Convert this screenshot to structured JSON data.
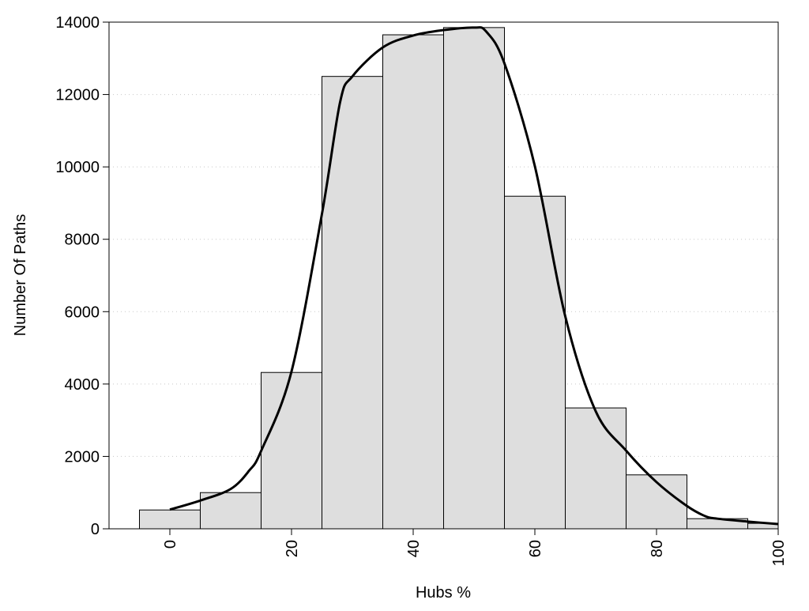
{
  "chart_data": {
    "type": "bar",
    "title": "",
    "xlabel": "Hubs %",
    "ylabel": "Number Of Paths",
    "xlim": [
      -10,
      100
    ],
    "ylim": [
      0,
      14000
    ],
    "grid": "horizontal-dotted",
    "bar_width": 10,
    "bar_color": "#dedede",
    "x_ticks": [
      0,
      20,
      40,
      60,
      80,
      100
    ],
    "y_ticks": [
      0,
      2000,
      4000,
      6000,
      8000,
      10000,
      12000,
      14000
    ],
    "bars": {
      "x": [
        0,
        10,
        20,
        30,
        40,
        50,
        60,
        70,
        80,
        90,
        100
      ],
      "values": [
        520,
        1000,
        4320,
        12500,
        13650,
        13850,
        9190,
        3340,
        1490,
        280,
        150
      ]
    },
    "series": [
      {
        "name": "density-curve",
        "type": "line",
        "color": "#000000",
        "x": [
          0,
          5,
          10,
          13,
          15,
          20,
          25,
          28,
          30,
          35,
          40,
          45,
          50,
          52,
          55,
          60,
          65,
          70,
          75,
          80,
          85,
          88,
          90,
          95,
          100
        ],
        "y": [
          530,
          780,
          1100,
          1600,
          2150,
          4350,
          8700,
          11800,
          12500,
          13300,
          13630,
          13780,
          13850,
          13740,
          12860,
          10020,
          5870,
          3250,
          2160,
          1290,
          630,
          350,
          280,
          200,
          130
        ]
      }
    ]
  }
}
